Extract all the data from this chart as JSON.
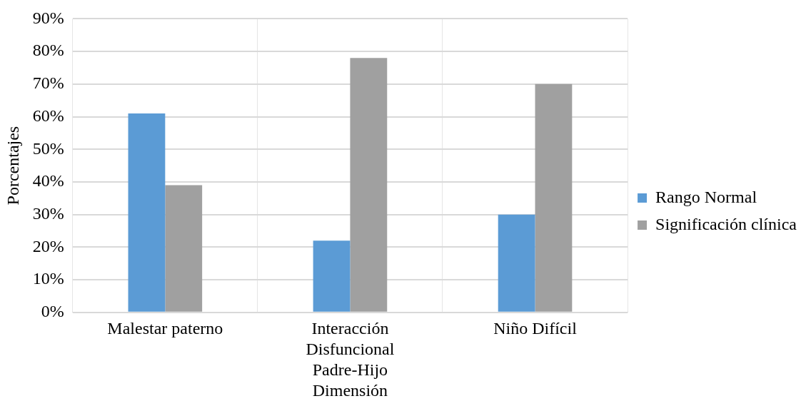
{
  "chart_data": {
    "type": "bar",
    "ylabel": "Porcentajes",
    "categories": [
      "Malestar paterno",
      "Interacción Disfuncional Padre-Hijo Dimensión",
      "Niño Difícil"
    ],
    "series": [
      {
        "name": "Rango Normal",
        "color": "#5b9bd5",
        "values": [
          61,
          22,
          30
        ]
      },
      {
        "name": "Significación clínica",
        "color": "#a0a0a0",
        "values": [
          39,
          78,
          70
        ]
      }
    ],
    "ylim": [
      0,
      90
    ],
    "yticks": [
      {
        "value": 0,
        "label": "0%"
      },
      {
        "value": 10,
        "label": "10%"
      },
      {
        "value": 20,
        "label": "20%"
      },
      {
        "value": 30,
        "label": "30%"
      },
      {
        "value": 40,
        "label": "40%"
      },
      {
        "value": 50,
        "label": "50%"
      },
      {
        "value": 60,
        "label": "60%"
      },
      {
        "value": 70,
        "label": "70%"
      },
      {
        "value": 80,
        "label": "80%"
      },
      {
        "value": 90,
        "label": "90%"
      }
    ],
    "grid": true,
    "legend": "right"
  }
}
